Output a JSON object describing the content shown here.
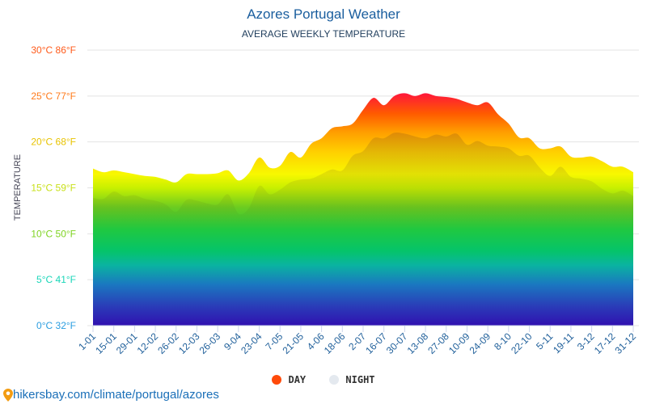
{
  "chart_data": {
    "type": "area",
    "title": "Azores Portugal Weather",
    "subtitle": "AVERAGE WEEKLY TEMPERATURE",
    "ylabel": "TEMPERATURE",
    "ylim": [
      0,
      30
    ],
    "y_ticks": [
      {
        "value": 0,
        "label": "0°C 32°F",
        "color": "#2a9de0"
      },
      {
        "value": 5,
        "label": "5°C 41°F",
        "color": "#1ad6b8"
      },
      {
        "value": 10,
        "label": "10°C 50°F",
        "color": "#7ed321"
      },
      {
        "value": 15,
        "label": "15°C 59°F",
        "color": "#c8e01a"
      },
      {
        "value": 20,
        "label": "20°C 68°F",
        "color": "#e8c300"
      },
      {
        "value": 25,
        "label": "25°C 77°F",
        "color": "#ff7a1a"
      },
      {
        "value": 30,
        "label": "30°C 86°F",
        "color": "#ff5a1a"
      }
    ],
    "grid": true,
    "x_tick_labels": [
      "1-01",
      "15-01",
      "29-01",
      "12-02",
      "26-02",
      "12-03",
      "26-03",
      "9-04",
      "23-04",
      "7-05",
      "21-05",
      "4-06",
      "18-06",
      "2-07",
      "16-07",
      "30-07",
      "13-08",
      "27-08",
      "10-09",
      "24-09",
      "8-10",
      "22-10",
      "5-11",
      "19-11",
      "3-12",
      "17-12",
      "31-12"
    ],
    "legend_position": "bottom",
    "series": [
      {
        "name": "DAY",
        "color": "#ff4a0a",
        "values": [
          17.1,
          16.7,
          16.9,
          16.7,
          16.5,
          16.3,
          16.2,
          15.9,
          15.6,
          16.5,
          16.5,
          16.5,
          16.6,
          16.9,
          15.8,
          16.6,
          18.3,
          17.2,
          17.4,
          18.9,
          18.3,
          19.8,
          20.4,
          21.5,
          21.7,
          22.0,
          23.5,
          24.8,
          24.0,
          25.0,
          25.3,
          25.0,
          25.3,
          25.0,
          24.9,
          24.7,
          24.3,
          24.0,
          24.3,
          23.0,
          22.0,
          20.5,
          20.4,
          19.3,
          19.3,
          19.5,
          18.4,
          18.3,
          18.4,
          17.9,
          17.3,
          17.3,
          16.7
        ]
      },
      {
        "name": "NIGHT",
        "color": "#e4e9ef",
        "values": [
          13.9,
          13.8,
          14.6,
          14.1,
          14.2,
          13.8,
          13.6,
          13.2,
          12.4,
          13.7,
          13.6,
          13.3,
          13.2,
          14.3,
          12.2,
          12.8,
          15.2,
          14.3,
          14.8,
          15.6,
          15.9,
          16.0,
          16.5,
          17.0,
          16.9,
          18.5,
          19.0,
          20.4,
          20.4,
          21.0,
          20.9,
          20.6,
          20.4,
          20.8,
          20.6,
          20.9,
          19.7,
          20.1,
          19.6,
          19.5,
          19.3,
          18.5,
          18.5,
          17.2,
          16.3,
          17.3,
          16.2,
          16.0,
          15.7,
          14.9,
          14.4,
          14.7,
          14.1
        ]
      }
    ]
  },
  "footer": {
    "link": "hikersbay.com/climate/portugal/azores",
    "icon": "map-pin-icon"
  }
}
